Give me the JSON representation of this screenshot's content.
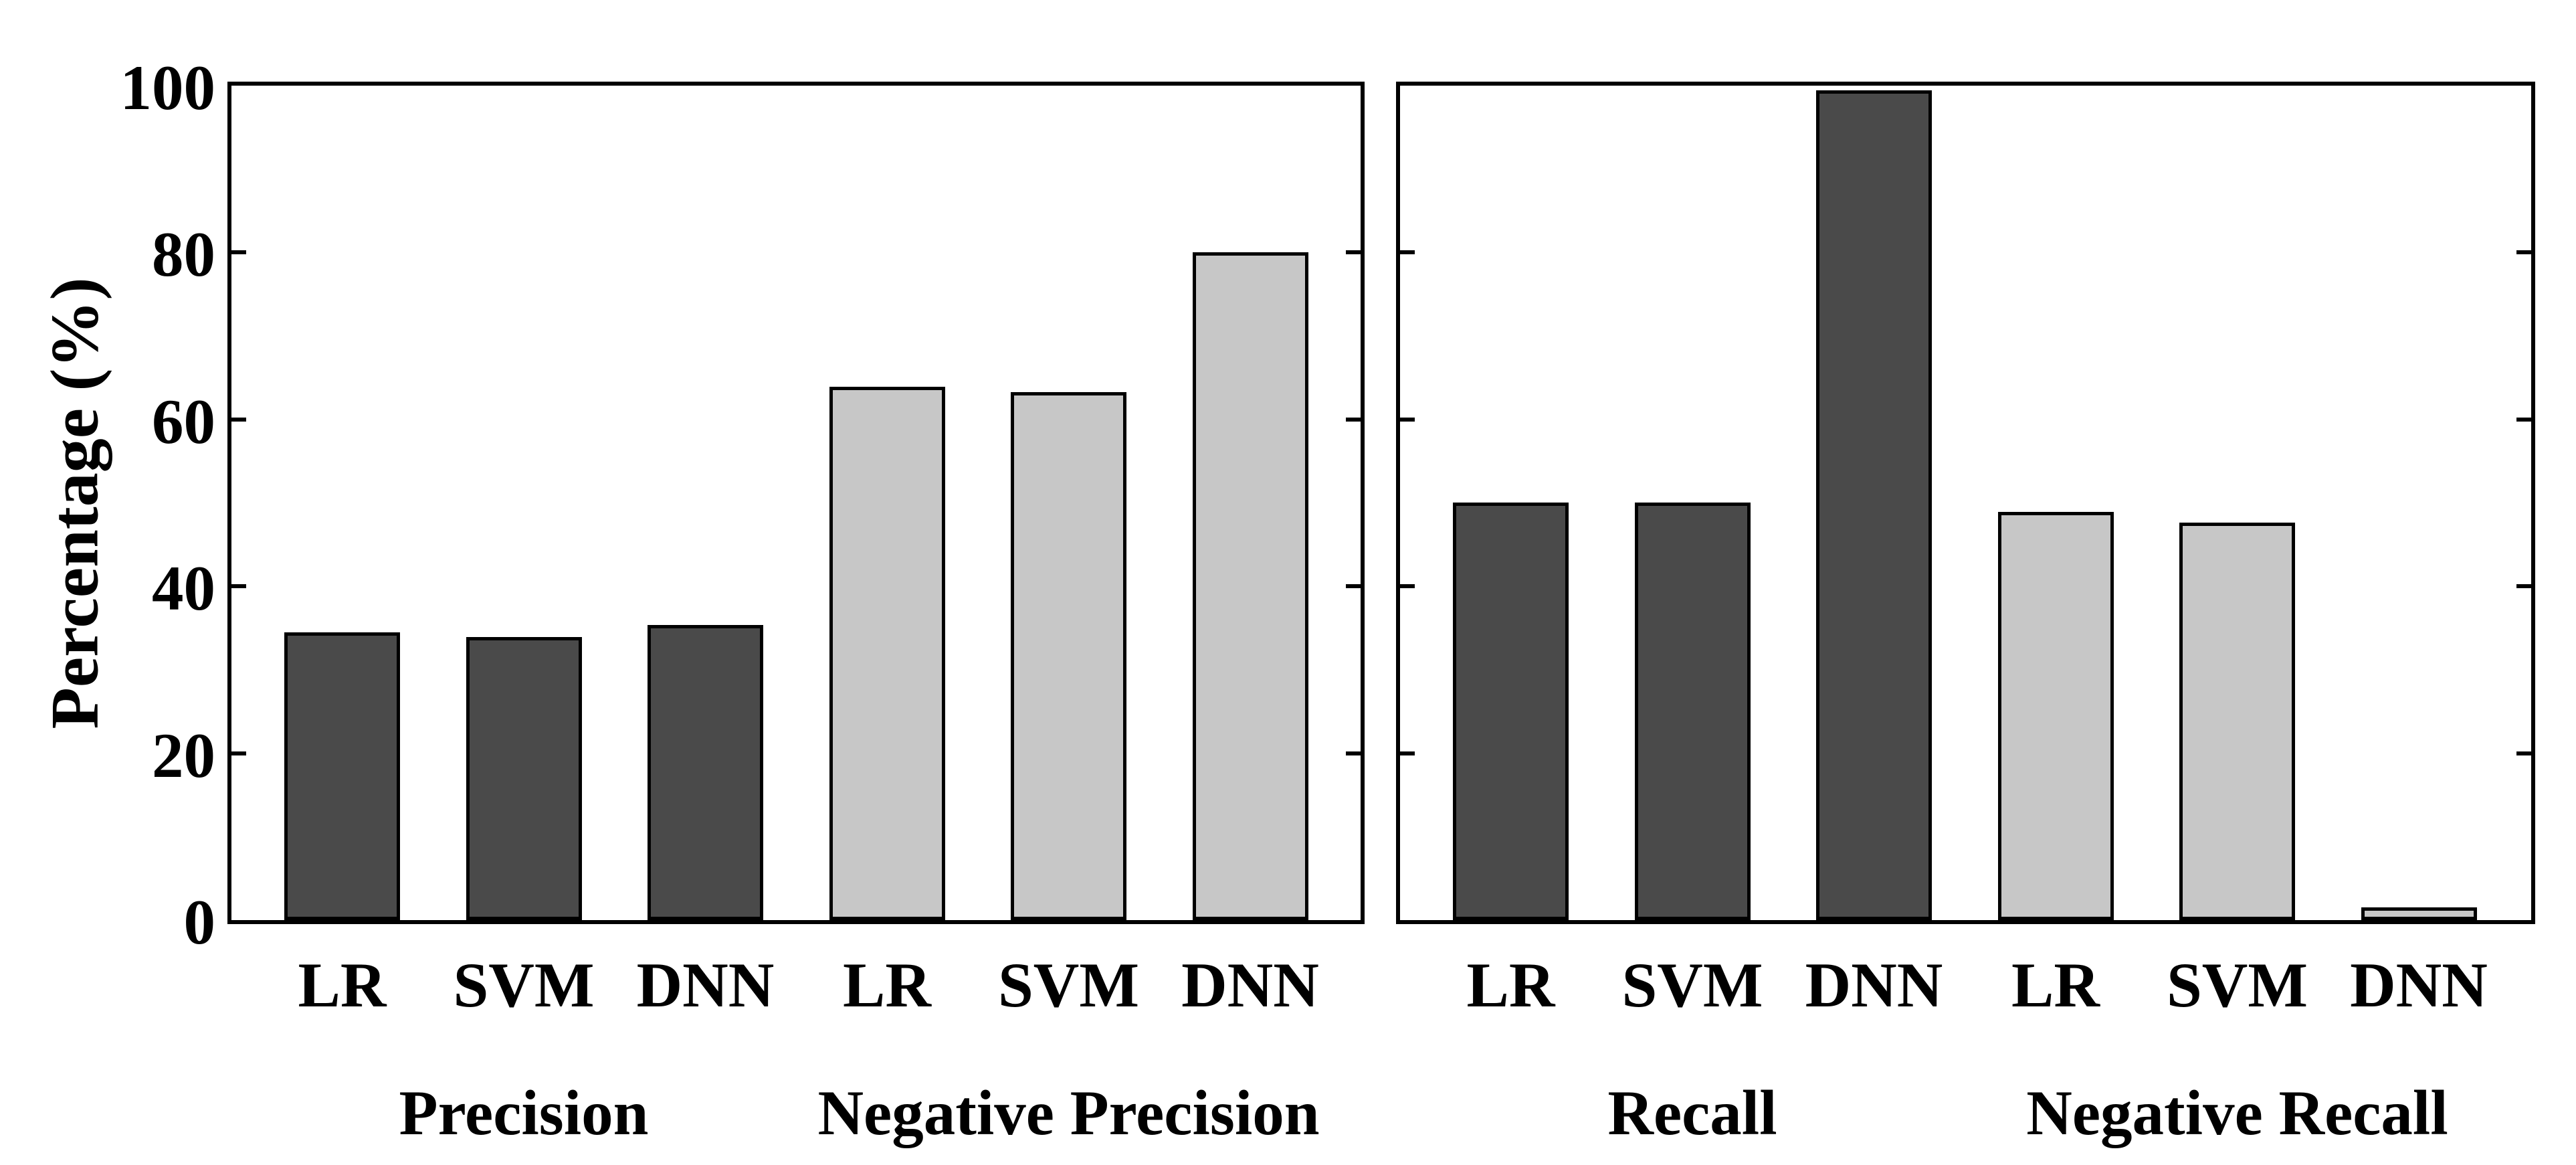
{
  "chart_data": {
    "type": "bar",
    "title": "",
    "ylabel": "Percentage (%)",
    "xlabel": "",
    "ylim": [
      0,
      100
    ],
    "yticks": [
      0,
      20,
      40,
      60,
      80,
      100
    ],
    "grid": false,
    "legend": "none",
    "panel_count": 2,
    "panels": [
      {
        "groups": [
          {
            "label": "Precision",
            "series_color": "dark",
            "categories": [
              "LR",
              "SVM",
              "DNN"
            ],
            "values": [
              34.5,
              33.9,
              35.4
            ]
          },
          {
            "label": "Negative Precision",
            "series_color": "light",
            "categories": [
              "LR",
              "SVM",
              "DNN"
            ],
            "values": [
              63.9,
              63.3,
              80.0
            ]
          }
        ]
      },
      {
        "groups": [
          {
            "label": "Recall",
            "series_color": "dark",
            "categories": [
              "LR",
              "SVM",
              "DNN"
            ],
            "values": [
              50.0,
              50.0,
              99.4
            ]
          },
          {
            "label": "Negative Recall",
            "series_color": "light",
            "categories": [
              "LR",
              "SVM",
              "DNN"
            ],
            "values": [
              48.9,
              47.6,
              1.5
            ]
          }
        ]
      }
    ],
    "colors": {
      "dark": "#4a4a4a",
      "light": "#c7c7c7",
      "edge": "#000000",
      "background": "#ffffff"
    }
  }
}
